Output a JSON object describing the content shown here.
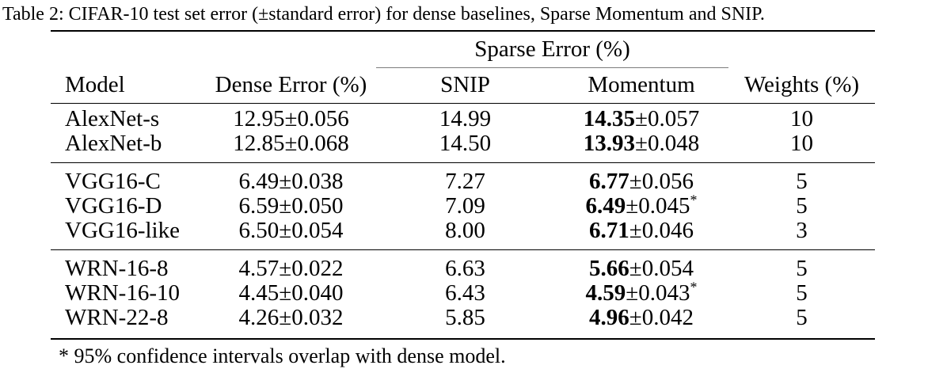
{
  "caption": "Table 2: CIFAR-10 test set error (±standard error) for dense baselines, Sparse Momentum and SNIP.",
  "table": {
    "span_header": "Sparse Error (%)",
    "headers": {
      "model": "Model",
      "dense": "Dense Error (%)",
      "snip": "SNIP",
      "momentum": "Momentum",
      "weights": "Weights (%)"
    },
    "rows": [
      {
        "model": "AlexNet-s",
        "dense": "12.95±0.056",
        "snip": "14.99",
        "momentum_best": "14.35",
        "momentum_err": "±0.057",
        "momentum_note": "",
        "weights": "10"
      },
      {
        "model": "AlexNet-b",
        "dense": "12.85±0.068",
        "snip": "14.50",
        "momentum_best": "13.93",
        "momentum_err": "±0.048",
        "momentum_note": "",
        "weights": "10"
      },
      {
        "model": "VGG16-C",
        "dense": "6.49±0.038",
        "snip": "7.27",
        "momentum_best": "6.77",
        "momentum_err": "±0.056",
        "momentum_note": "",
        "weights": "5"
      },
      {
        "model": "VGG16-D",
        "dense": "6.59±0.050",
        "snip": "7.09",
        "momentum_best": "6.49",
        "momentum_err": "±0.045",
        "momentum_note": "*",
        "weights": "5"
      },
      {
        "model": "VGG16-like",
        "dense": "6.50±0.054",
        "snip": "8.00",
        "momentum_best": "6.71",
        "momentum_err": "±0.046",
        "momentum_note": "",
        "weights": "3"
      },
      {
        "model": "WRN-16-8",
        "dense": "4.57±0.022",
        "snip": "6.63",
        "momentum_best": "5.66",
        "momentum_err": "±0.054",
        "momentum_note": "",
        "weights": "5"
      },
      {
        "model": "WRN-16-10",
        "dense": "4.45±0.040",
        "snip": "6.43",
        "momentum_best": "4.59",
        "momentum_err": "±0.043",
        "momentum_note": "*",
        "weights": "5"
      },
      {
        "model": "WRN-22-8",
        "dense": "4.26±0.032",
        "snip": "5.85",
        "momentum_best": "4.96",
        "momentum_err": "±0.042",
        "momentum_note": "",
        "weights": "5"
      }
    ],
    "footnote": "* 95% confidence intervals overlap with dense model."
  }
}
